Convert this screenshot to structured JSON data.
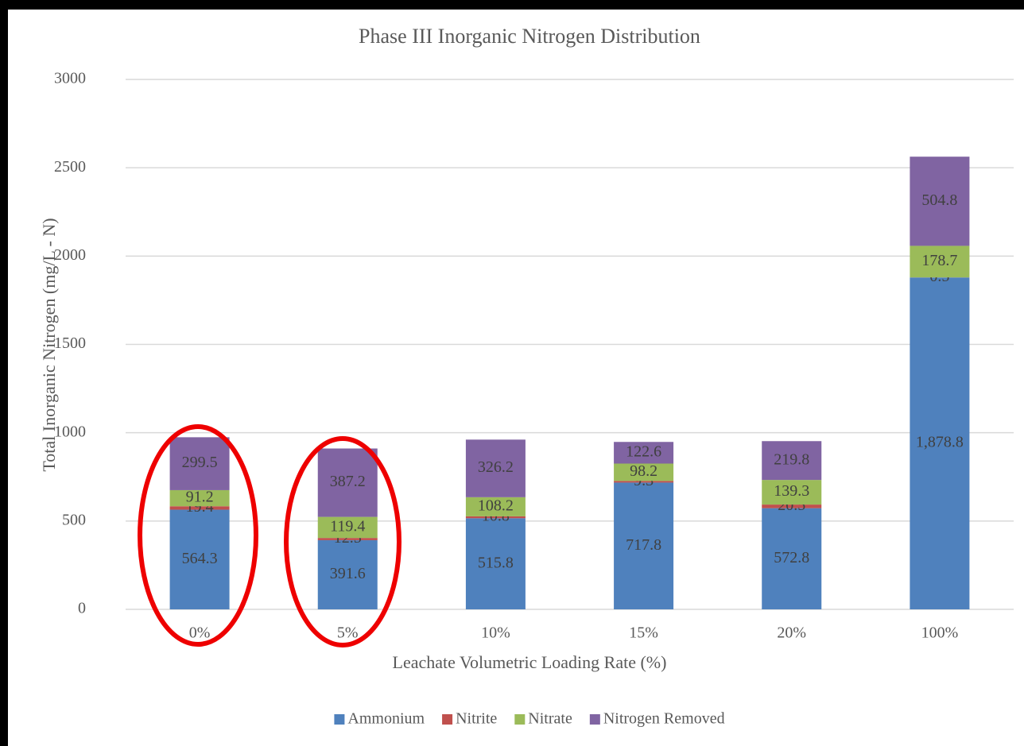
{
  "chart_data": {
    "type": "stacked_bar",
    "title": "Phase III Inorganic Nitrogen Distribution",
    "x_label": "Leachate Volumetric Loading Rate (%)",
    "y_label": "Total Inorganic Nitrogen (mg/L - N)",
    "categories": [
      "0%",
      "5%",
      "10%",
      "15%",
      "20%",
      "100%"
    ],
    "series": [
      {
        "name": "Ammonium",
        "color": "#4f81bd",
        "values": [
          564.3,
          391.6,
          515.8,
          717.8,
          572.8,
          1878.8
        ],
        "value_labels": [
          "564.3",
          "391.6",
          "515.8",
          "717.8",
          "572.8",
          "1,878.8"
        ]
      },
      {
        "name": "Nitrite",
        "color": "#c0504d",
        "values": [
          19.4,
          12.5,
          10.8,
          9.3,
          20.5,
          0.5
        ]
      },
      {
        "name": "Nitrate",
        "color": "#9bbb59",
        "values": [
          91.2,
          119.4,
          108.2,
          98.2,
          139.3,
          178.7
        ]
      },
      {
        "name": "Nitrogen Removed",
        "color": "#8064a2",
        "values": [
          299.5,
          387.2,
          326.2,
          122.6,
          219.8,
          504.8
        ]
      }
    ],
    "ylim": [
      0,
      3000
    ],
    "yticks": [
      0,
      500,
      1000,
      1500,
      2000,
      2500,
      3000
    ],
    "grid": true,
    "legend": "bottom"
  }
}
